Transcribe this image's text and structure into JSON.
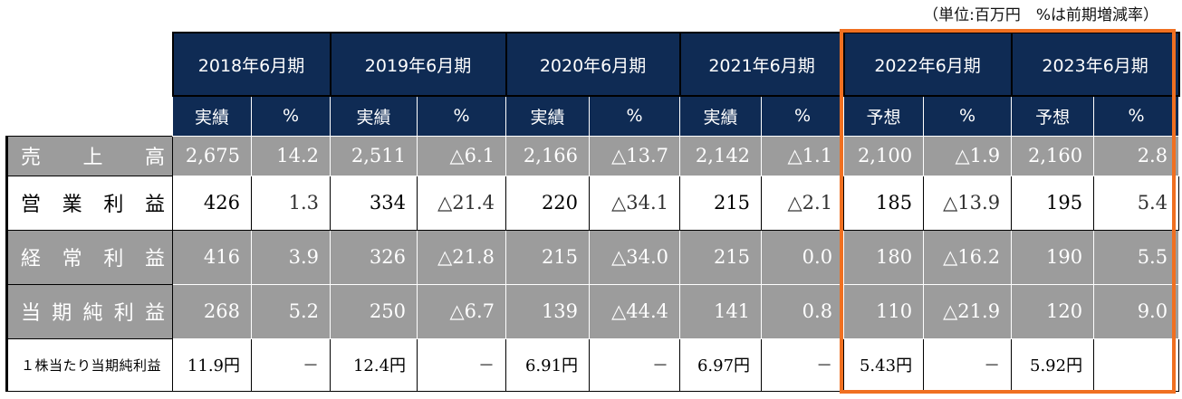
{
  "unit_note": "（単位:百万円　%は前期増減率）",
  "years": [
    "2018年6月期",
    "2019年6月期",
    "2020年6月期",
    "2021年6月期",
    "2022年6月期",
    "2023年6月期"
  ],
  "sub_headers": [
    "実績",
    "%",
    "実績",
    "%",
    "実績",
    "%",
    "実績",
    "%",
    "予想",
    "%",
    "予想",
    "%"
  ],
  "rows": [
    {
      "label": [
        "売",
        "上",
        "高"
      ],
      "values": [
        "2,675",
        "14.2",
        "2,511",
        "△6.1",
        "2,166",
        "△13.7",
        "2,142",
        "△1.1",
        "2,100",
        "△1.9",
        "2,160",
        "2.8"
      ]
    },
    {
      "label": [
        "営",
        "業",
        "利",
        "益"
      ],
      "values": [
        "426",
        "1.3",
        "334",
        "△21.4",
        "220",
        "△34.1",
        "215",
        "△2.1",
        "185",
        "△13.9",
        "195",
        "5.4"
      ]
    },
    {
      "label": [
        "経",
        "常",
        "利",
        "益"
      ],
      "values": [
        "416",
        "3.9",
        "326",
        "△21.8",
        "215",
        "△34.0",
        "215",
        "0.0",
        "180",
        "△16.2",
        "190",
        "5.5"
      ]
    },
    {
      "label": [
        "当",
        "期",
        "純",
        "利",
        "益"
      ],
      "values": [
        "268",
        "5.2",
        "250",
        "△6.7",
        "139",
        "△44.4",
        "141",
        "0.8",
        "110",
        "△21.9",
        "120",
        "9.0"
      ]
    },
    {
      "label": [
        "１株当たり当期純利益"
      ],
      "values": [
        "11.9円",
        "－",
        "12.4円",
        "－",
        "6.91円",
        "－",
        "6.97円",
        "－",
        "5.43円",
        "－",
        "5.92円",
        ""
      ]
    }
  ],
  "colors": {
    "header_bg": "#0f2b54",
    "gray_row": "#9c9c9c",
    "highlight": "#f07021"
  }
}
